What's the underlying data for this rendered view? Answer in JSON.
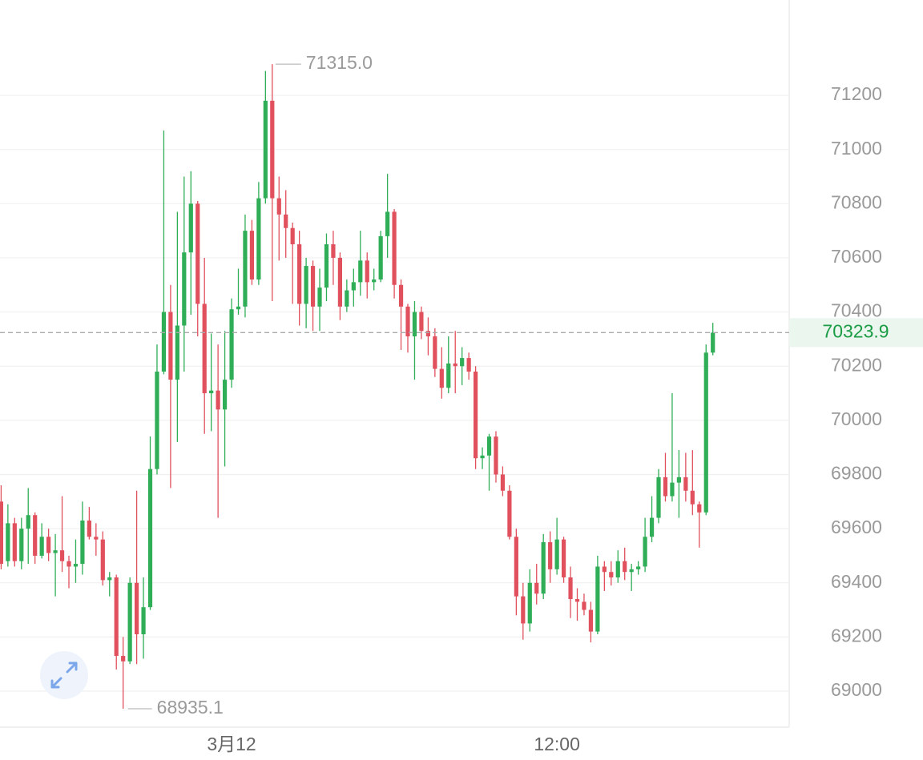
{
  "chart_data": {
    "type": "candlestick",
    "categories": [
      null,
      null,
      null,
      null,
      null,
      null,
      null,
      null,
      null,
      null,
      null,
      null,
      null,
      null,
      null,
      null,
      null,
      null,
      null,
      null,
      null,
      null,
      null,
      null,
      null,
      null,
      null,
      null,
      null,
      null,
      null,
      null,
      null,
      null,
      "3月12",
      null,
      null,
      null,
      null,
      null,
      null,
      null,
      null,
      null,
      null,
      null,
      null,
      null,
      null,
      null,
      null,
      null,
      null,
      null,
      null,
      null,
      null,
      null,
      null,
      null,
      null,
      null,
      null,
      null,
      null,
      null,
      null,
      null,
      null,
      null,
      null,
      null,
      null,
      null,
      null,
      null,
      null,
      null,
      null,
      null,
      null,
      null,
      "12:00",
      null,
      null,
      null,
      null,
      null,
      null,
      null,
      null,
      null,
      null,
      null,
      null,
      null,
      null,
      null,
      null,
      null,
      null,
      null,
      null,
      null,
      null,
      null
    ],
    "open": [
      69700,
      69480,
      69620,
      69480,
      69600,
      69650,
      69500,
      69570,
      69510,
      69520,
      69480,
      69460,
      69470,
      69630,
      69570,
      69560,
      69410,
      69420,
      69130,
      69110,
      69400,
      69210,
      69310,
      69820,
      70180,
      70400,
      70150,
      70350,
      70620,
      70800,
      70430,
      70100,
      70110,
      70040,
      70150,
      70410,
      70420,
      70700,
      70520,
      70820,
      71180,
      70820,
      70760,
      70710,
      70650,
      70430,
      70570,
      70420,
      70490,
      70650,
      70600,
      70420,
      70480,
      70510,
      70590,
      70510,
      70520,
      70680,
      70770,
      70500,
      70420,
      70310,
      70400,
      70330,
      70310,
      70190,
      70120,
      70210,
      70200,
      70230,
      70180,
      69860,
      69870,
      69940,
      69800,
      69740,
      69570,
      69350,
      69250,
      69400,
      69360,
      69550,
      69450,
      69560,
      69420,
      69340,
      69330,
      69300,
      69220,
      69460,
      69440,
      69420,
      69480,
      69440,
      69450,
      69460,
      69570,
      69640,
      69790,
      69720,
      69770,
      69790,
      69740,
      69690,
      69660,
      70250
    ],
    "high": [
      69760,
      69690,
      69640,
      69640,
      69750,
      69660,
      69620,
      69600,
      69580,
      69720,
      69500,
      69560,
      69700,
      69680,
      69620,
      69590,
      69440,
      69430,
      69200,
      69420,
      69740,
      69420,
      69940,
      70280,
      71070,
      70500,
      70770,
      70900,
      70920,
      70810,
      70600,
      70320,
      70280,
      70330,
      70450,
      70560,
      70760,
      70740,
      70880,
      71290,
      71315,
      70900,
      70850,
      70730,
      70700,
      70600,
      70590,
      70560,
      70690,
      70700,
      70620,
      70520,
      70560,
      70700,
      70620,
      70560,
      70700,
      70910,
      70780,
      70520,
      70430,
      70440,
      70420,
      70380,
      70340,
      70270,
      70310,
      70330,
      70270,
      70250,
      70200,
      69900,
      69950,
      69960,
      69830,
      69760,
      69600,
      69400,
      69450,
      69470,
      69580,
      69590,
      69640,
      69570,
      69460,
      69380,
      69360,
      69330,
      69500,
      69480,
      69480,
      69520,
      69530,
      69470,
      69480,
      69640,
      69720,
      69820,
      69880,
      70100,
      69890,
      69880,
      69890,
      69700,
      70280,
      70360
    ],
    "low": [
      69450,
      69460,
      69460,
      69450,
      69470,
      69470,
      69490,
      69480,
      69350,
      69440,
      69380,
      69400,
      69430,
      69560,
      69500,
      69390,
      69350,
      69080,
      68935.1,
      69100,
      69100,
      69120,
      69300,
      69800,
      70170,
      69750,
      69920,
      70180,
      70390,
      70310,
      69950,
      69960,
      69640,
      69830,
      70120,
      70390,
      70380,
      70500,
      70500,
      70800,
      70440,
      70590,
      70600,
      70430,
      70350,
      70340,
      70330,
      70330,
      70440,
      70500,
      70370,
      70400,
      70420,
      70460,
      70450,
      70480,
      70510,
      70600,
      70450,
      70260,
      70250,
      70150,
      70300,
      70240,
      70160,
      70080,
      70100,
      70100,
      70130,
      70150,
      69820,
      69820,
      69740,
      69770,
      69720,
      69560,
      69280,
      69190,
      69220,
      69320,
      69340,
      69400,
      69430,
      69400,
      69270,
      69260,
      69280,
      69180,
      69210,
      69370,
      69390,
      69400,
      69410,
      69370,
      69430,
      69440,
      69550,
      69620,
      69700,
      69700,
      69640,
      69700,
      69650,
      69530,
      69650,
      70240
    ],
    "close": [
      69470,
      69620,
      69480,
      69600,
      69650,
      69500,
      69570,
      69510,
      69520,
      69480,
      69460,
      69470,
      69630,
      69570,
      69560,
      69410,
      69420,
      69130,
      69110,
      69400,
      69210,
      69310,
      69820,
      70180,
      70400,
      70150,
      70350,
      70620,
      70800,
      70430,
      70100,
      70110,
      70040,
      70150,
      70410,
      70420,
      70700,
      70520,
      70820,
      71180,
      70820,
      70760,
      70710,
      70650,
      70430,
      70570,
      70420,
      70490,
      70650,
      70600,
      70420,
      70480,
      70510,
      70590,
      70510,
      70520,
      70680,
      70770,
      70500,
      70420,
      70310,
      70400,
      70330,
      70310,
      70190,
      70120,
      70210,
      70200,
      70230,
      70180,
      69860,
      69870,
      69940,
      69800,
      69740,
      69570,
      69350,
      69250,
      69400,
      69360,
      69550,
      69450,
      69560,
      69420,
      69340,
      69330,
      69300,
      69220,
      69460,
      69440,
      69420,
      69480,
      69440,
      69450,
      69460,
      69570,
      69640,
      69790,
      69720,
      69770,
      69790,
      69740,
      69690,
      69660,
      70250,
      70323.9
    ],
    "up_color": "#2fae57",
    "down_color": "#e0505d",
    "high_label": "71315.0",
    "ylim": [
      68867,
      71552
    ],
    "yticks": [
      69000,
      69200,
      69400,
      69600,
      69800,
      70000,
      70200,
      70400,
      70600,
      70800,
      71000,
      71200
    ],
    "grid": true
  }
}
